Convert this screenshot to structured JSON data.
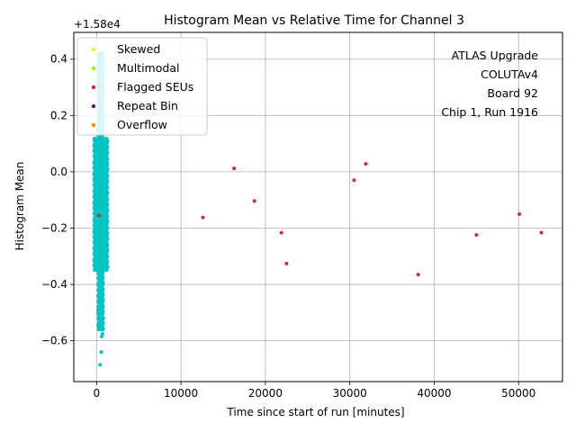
{
  "chart_data": {
    "type": "scatter",
    "title": "Histogram Mean vs Relative Time for Channel 3",
    "xlabel": "Time since start of run [minutes]",
    "ylabel": "Histogram Mean",
    "offset_label": "+1.58e4",
    "xlim": [
      -2700,
      55200
    ],
    "ylim": [
      -0.745,
      0.495
    ],
    "xticks": [
      0,
      10000,
      20000,
      30000,
      40000,
      50000
    ],
    "xtick_labels": [
      "0",
      "10000",
      "20000",
      "30000",
      "40000",
      "50000"
    ],
    "yticks": [
      -0.6,
      -0.4,
      -0.2,
      0.0,
      0.2,
      0.4
    ],
    "ytick_labels": [
      "−0.6",
      "−0.4",
      "−0.2",
      "0.0",
      "0.2",
      "0.4"
    ],
    "grid": true,
    "legend_position": "top-left",
    "legend": [
      {
        "label": "Skewed",
        "color": "#f5f500"
      },
      {
        "label": "Multimodal",
        "color": "#7fff00"
      },
      {
        "label": "Flagged SEUs",
        "color": "#d62728"
      },
      {
        "label": "Repeat Bin",
        "color": "#800080"
      },
      {
        "label": "Overflow",
        "color": "#ff8c00"
      }
    ],
    "annotation": [
      "ATLAS Upgrade",
      "COLUTAv4",
      "Board 92",
      "Chip 1, Run 1916"
    ],
    "main_series_color": "#00c5c5",
    "series": [
      {
        "name": "Flagged SEUs",
        "color": "#d62728",
        "points": [
          [
            12600,
            -0.162
          ],
          [
            16300,
            0.012
          ],
          [
            18700,
            -0.104
          ],
          [
            21900,
            -0.216
          ],
          [
            22500,
            -0.326
          ],
          [
            30500,
            -0.03
          ],
          [
            31900,
            0.028
          ],
          [
            38100,
            -0.365
          ],
          [
            45000,
            -0.224
          ],
          [
            50100,
            -0.15
          ],
          [
            52700,
            -0.216
          ],
          [
            300,
            -0.155
          ]
        ]
      },
      {
        "name": "",
        "color": "#00c5c5",
        "points": [
          [
            420,
            -0.685
          ],
          [
            560,
            -0.64
          ],
          [
            600,
            -0.585
          ],
          [
            700,
            -0.575
          ],
          [
            250,
            -0.55
          ],
          [
            300,
            -0.5
          ],
          [
            800,
            -0.52
          ],
          [
            200,
            -0.49
          ],
          [
            650,
            -0.47
          ],
          [
            400,
            -0.44
          ],
          [
            500,
            -0.41
          ],
          [
            350,
            -0.38
          ],
          [
            700,
            -0.35
          ],
          [
            150,
            -0.32
          ],
          [
            900,
            -0.3
          ],
          [
            450,
            -0.27
          ],
          [
            600,
            -0.24
          ],
          [
            300,
            -0.21
          ],
          [
            800,
            -0.18
          ],
          [
            500,
            -0.15
          ],
          [
            650,
            -0.12
          ],
          [
            250,
            -0.09
          ],
          [
            700,
            -0.06
          ],
          [
            400,
            -0.03
          ],
          [
            550,
            0.0
          ],
          [
            800,
            0.03
          ],
          [
            350,
            0.06
          ],
          [
            600,
            0.09
          ],
          [
            700,
            0.11
          ],
          [
            450,
            0.14
          ],
          [
            550,
            0.18
          ],
          [
            650,
            0.22
          ],
          [
            500,
            0.26
          ],
          [
            600,
            0.3
          ],
          [
            700,
            0.34
          ],
          [
            550,
            0.38
          ],
          [
            650,
            0.42
          ]
        ]
      }
    ]
  }
}
